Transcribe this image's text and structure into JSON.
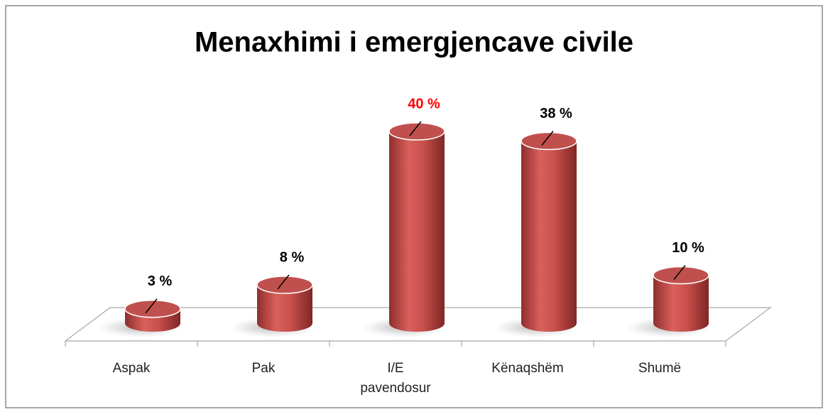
{
  "chart_data": {
    "type": "bar",
    "title": "Menaxhimi i emergjencave civile",
    "categories": [
      "Aspak",
      "Pak",
      "I/E pavendosur",
      "Kënaqshëm",
      "Shumë"
    ],
    "values": [
      3,
      8,
      40,
      38,
      10
    ],
    "value_labels": [
      "3 %",
      "8 %",
      "40 %",
      "38 %",
      "10 %"
    ],
    "value_label_colors": [
      "#000000",
      "#000000",
      "#ff0000",
      "#000000",
      "#000000"
    ],
    "color": "#c0504d"
  }
}
